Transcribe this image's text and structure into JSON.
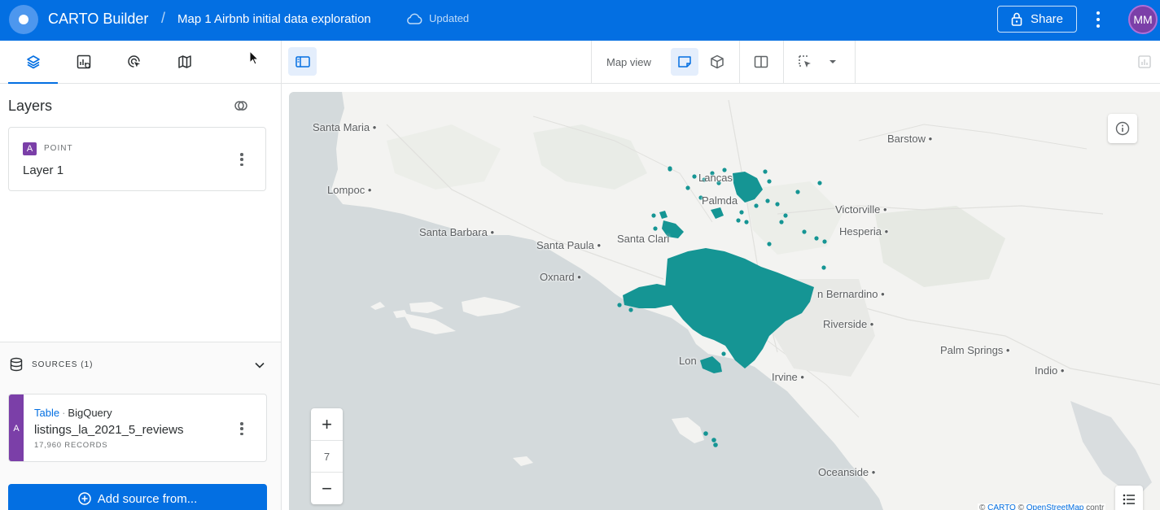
{
  "header": {
    "app_title": "CARTO Builder",
    "separator": "/",
    "map_title": "Map 1 Airbnb initial data exploration",
    "status": "Updated",
    "share_label": "Share",
    "avatar_initials": "MM"
  },
  "left_tabs": [
    {
      "name": "layers",
      "icon": "layers-icon",
      "active": true
    },
    {
      "name": "widgets",
      "icon": "widgets-icon",
      "active": false
    },
    {
      "name": "interactions",
      "icon": "interactions-icon",
      "active": false
    },
    {
      "name": "basemaps",
      "icon": "map-icon",
      "active": false
    }
  ],
  "layers": {
    "heading": "Layers",
    "items": [
      {
        "badge": "A",
        "type": "POINT",
        "name": "Layer 1"
      }
    ]
  },
  "sources": {
    "heading": "SOURCES (1)",
    "items": [
      {
        "badge": "A",
        "kind": "Table",
        "provider": "BigQuery",
        "name": "listings_la_2021_5_reviews",
        "records": "17,960 RECORDS"
      }
    ],
    "add_label": "Add source from..."
  },
  "map_toolbar": {
    "view_label": "Map view"
  },
  "map": {
    "zoom_level": "7",
    "zoom_in": "+",
    "zoom_out": "−",
    "attribution": {
      "prefix": "© ",
      "carto": "CARTO",
      "mid": " © ",
      "osm": "OpenStreetMap",
      "suffix": " contr"
    },
    "cities": [
      "Santa Maria",
      "Lompoc",
      "Santa Barbara",
      "Santa Paula",
      "Oxnard",
      "Santa Clari",
      "Lancas",
      "Palmda",
      "Victorville",
      "Hesperia",
      "Barstow",
      "n Bernardino",
      "Riverside",
      "Palm Springs",
      "Indio",
      "Lon",
      "Irvine",
      "Oceanside"
    ]
  },
  "colors": {
    "brand": "#036fe2",
    "layer_badge": "#7b3fa8",
    "points": "#159594",
    "water": "#d4dadc",
    "land": "#f3f3f1"
  }
}
